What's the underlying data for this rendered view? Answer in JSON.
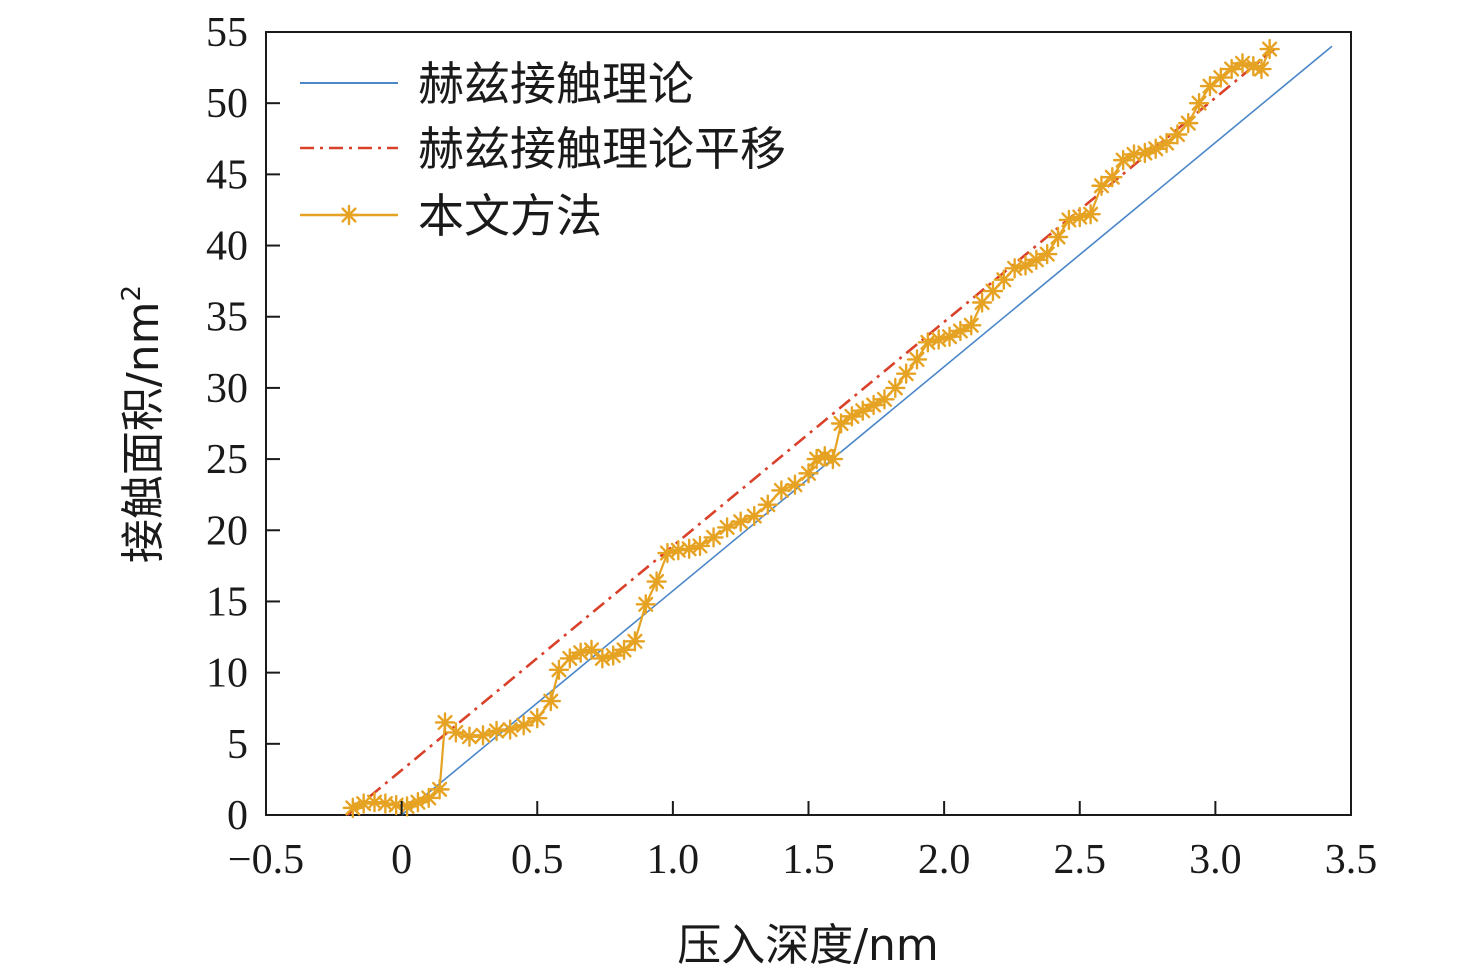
{
  "chart_data": {
    "type": "line",
    "title": "",
    "xlabel": "压入深度/nm",
    "ylabel": "接触面积/nm",
    "ylabel_superscript": "2",
    "xlim": [
      -0.5,
      3.5
    ],
    "ylim": [
      0,
      55
    ],
    "xticks": [
      -0.5,
      0,
      0.5,
      1.0,
      1.5,
      2.0,
      2.5,
      3.0,
      3.5
    ],
    "xtick_labels": [
      "−0.5",
      "0",
      "0.5",
      "1.0",
      "1.5",
      "2.0",
      "2.5",
      "3.0",
      "3.5"
    ],
    "yticks": [
      0,
      5,
      10,
      15,
      20,
      25,
      30,
      35,
      40,
      45,
      50,
      55
    ],
    "ytick_labels": [
      "0",
      "5",
      "10",
      "15",
      "20",
      "25",
      "30",
      "35",
      "40",
      "45",
      "50",
      "55"
    ],
    "grid": false,
    "legend_position": "top-left",
    "series": [
      {
        "name": "赫兹接触理论",
        "color": "#4a86c8",
        "style": "solid",
        "marker": "none",
        "x": [
          0.0,
          3.43
        ],
        "y": [
          0.0,
          54.0
        ]
      },
      {
        "name": "赫兹接触理论平移",
        "color": "#d9412b",
        "style": "dashdot",
        "marker": "none",
        "x": [
          -0.2,
          3.23
        ],
        "y": [
          0.0,
          54.0
        ]
      },
      {
        "name": "本文方法",
        "color": "#e6a323",
        "style": "solid",
        "marker": "star",
        "x": [
          -0.18,
          -0.14,
          -0.1,
          -0.06,
          -0.02,
          0.02,
          0.06,
          0.1,
          0.14,
          0.16,
          0.2,
          0.25,
          0.3,
          0.35,
          0.4,
          0.45,
          0.5,
          0.55,
          0.58,
          0.62,
          0.66,
          0.7,
          0.74,
          0.78,
          0.82,
          0.86,
          0.9,
          0.94,
          0.98,
          1.02,
          1.06,
          1.1,
          1.15,
          1.2,
          1.25,
          1.3,
          1.35,
          1.4,
          1.45,
          1.5,
          1.53,
          1.56,
          1.59,
          1.62,
          1.66,
          1.7,
          1.74,
          1.78,
          1.82,
          1.86,
          1.9,
          1.94,
          1.98,
          2.02,
          2.06,
          2.1,
          2.14,
          2.18,
          2.22,
          2.26,
          2.3,
          2.34,
          2.38,
          2.42,
          2.46,
          2.5,
          2.54,
          2.58,
          2.62,
          2.66,
          2.7,
          2.74,
          2.78,
          2.82,
          2.86,
          2.9,
          2.94,
          2.98,
          3.02,
          3.06,
          3.1,
          3.14,
          3.17,
          3.2
        ],
        "y": [
          0.5,
          0.8,
          0.9,
          0.8,
          0.7,
          0.6,
          0.9,
          1.2,
          1.8,
          6.5,
          5.8,
          5.5,
          5.6,
          5.9,
          6.0,
          6.3,
          6.8,
          8.0,
          10.2,
          11.0,
          11.4,
          11.6,
          11.0,
          11.2,
          11.6,
          12.2,
          14.8,
          16.4,
          18.4,
          18.6,
          18.7,
          18.9,
          19.5,
          20.2,
          20.6,
          21.0,
          21.8,
          22.8,
          23.2,
          24.0,
          25.0,
          25.2,
          25.0,
          27.5,
          28.0,
          28.4,
          28.8,
          29.2,
          30.0,
          31.0,
          32.0,
          33.2,
          33.4,
          33.6,
          34.0,
          34.4,
          36.0,
          36.8,
          37.6,
          38.4,
          38.6,
          39.0,
          39.4,
          40.6,
          41.8,
          42.0,
          42.2,
          44.2,
          44.8,
          46.0,
          46.4,
          46.5,
          46.8,
          47.2,
          47.8,
          48.6,
          50.0,
          51.2,
          51.8,
          52.4,
          52.8,
          52.6,
          52.4,
          53.8
        ]
      }
    ]
  }
}
